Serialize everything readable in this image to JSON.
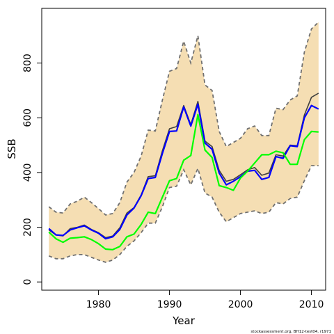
{
  "chart_data": {
    "type": "line",
    "xlabel": "Year",
    "ylabel": "SSB",
    "xlim": [
      1972,
      2012
    ],
    "ylim": [
      -30,
      1000
    ],
    "x_ticks": [
      1980,
      1990,
      2000,
      2010
    ],
    "y_ticks": [
      0,
      200,
      400,
      600,
      800
    ],
    "grid": false,
    "legend": "none",
    "band": {
      "color": "#f5deb3",
      "edge_color": "#707070",
      "x": [
        1973,
        1974,
        1975,
        1976,
        1977,
        1978,
        1979,
        1980,
        1981,
        1982,
        1983,
        1984,
        1985,
        1986,
        1987,
        1988,
        1989,
        1990,
        1991,
        1992,
        1993,
        1994,
        1995,
        1996,
        1997,
        1998,
        1999,
        2000,
        2001,
        2002,
        2003,
        2004,
        2005,
        2006,
        2007,
        2008,
        2009,
        2010,
        2011
      ],
      "upper": [
        275,
        255,
        252,
        285,
        295,
        310,
        290,
        268,
        245,
        250,
        290,
        365,
        400,
        460,
        555,
        552,
        665,
        770,
        780,
        880,
        800,
        900,
        720,
        700,
        550,
        495,
        510,
        525,
        560,
        570,
        535,
        535,
        635,
        630,
        665,
        680,
        840,
        925,
        950
      ],
      "lower": [
        95,
        85,
        85,
        95,
        100,
        100,
        90,
        80,
        72,
        80,
        100,
        130,
        150,
        180,
        215,
        215,
        275,
        345,
        350,
        410,
        355,
        415,
        325,
        310,
        255,
        220,
        235,
        250,
        255,
        260,
        250,
        255,
        290,
        285,
        305,
        310,
        370,
        425,
        425
      ]
    },
    "series": [
      {
        "color": "#404040",
        "x": [
          1973,
          1974,
          1975,
          1976,
          1977,
          1978,
          1979,
          1980,
          1981,
          1982,
          1983,
          1984,
          1985,
          1986,
          1987,
          1988,
          1989,
          1990,
          1991,
          1992,
          1993,
          1994,
          1995,
          1996,
          1997,
          1998,
          1999,
          2000,
          2001,
          2002,
          2003,
          2004,
          2005,
          2006,
          2007,
          2008,
          2009,
          2010,
          2011
        ],
        "values": [
          190,
          172,
          168,
          195,
          200,
          208,
          192,
          180,
          162,
          168,
          198,
          252,
          272,
          318,
          385,
          388,
          480,
          560,
          568,
          645,
          575,
          660,
          515,
          495,
          408,
          368,
          375,
          392,
          410,
          418,
          390,
          398,
          465,
          460,
          500,
          498,
          610,
          675,
          690
        ]
      },
      {
        "color": "#0000ff",
        "x": [
          1973,
          1974,
          1975,
          1976,
          1977,
          1978,
          1979,
          1980,
          1981,
          1982,
          1983,
          1984,
          1985,
          1986,
          1987,
          1988,
          1989,
          1990,
          1991,
          1992,
          1993,
          1994,
          1995,
          1996,
          1997,
          1998,
          1999,
          2000,
          2001,
          2002,
          2003,
          2004,
          2005,
          2006,
          2007,
          2008,
          2009,
          2010,
          2011
        ],
        "values": [
          195,
          172,
          170,
          190,
          198,
          205,
          190,
          178,
          158,
          165,
          192,
          245,
          270,
          315,
          378,
          382,
          470,
          550,
          552,
          640,
          570,
          650,
          508,
          485,
          398,
          355,
          368,
          385,
          405,
          408,
          375,
          382,
          458,
          452,
          498,
          495,
          600,
          645,
          632
        ]
      },
      {
        "color": "#00ff00",
        "x": [
          1973,
          1974,
          1975,
          1976,
          1977,
          1978,
          1979,
          1980,
          1981,
          1982,
          1983,
          1984,
          1985,
          1986,
          1987,
          1988,
          1989,
          1990,
          1991,
          1992,
          1993,
          1994,
          1995,
          1996,
          1997,
          1998,
          1999,
          2000,
          2001,
          2002,
          2003,
          2004,
          2005,
          2006,
          2007,
          2008,
          2009,
          2010,
          2011
        ],
        "values": [
          182,
          158,
          145,
          160,
          162,
          165,
          155,
          140,
          120,
          118,
          130,
          165,
          175,
          210,
          255,
          250,
          310,
          370,
          378,
          445,
          462,
          612,
          482,
          455,
          352,
          345,
          335,
          380,
          405,
          435,
          465,
          465,
          478,
          472,
          430,
          430,
          520,
          550,
          548
        ]
      }
    ],
    "footnote": "stockassessment.org, BH12-test04, r1971"
  }
}
